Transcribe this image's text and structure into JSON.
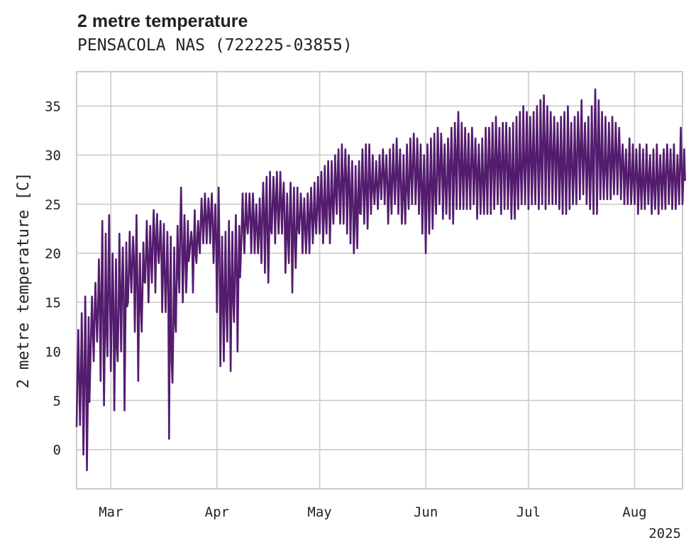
{
  "chart_data": {
    "type": "line",
    "title": "2 metre temperature",
    "subtitle": "PENSACOLA NAS (722225-03855)",
    "ylabel": "2 metre temperature [C]",
    "year_label": "2025",
    "x_range": [
      "2025-02-19",
      "2025-08-15"
    ],
    "ylim": [
      -4,
      38.5
    ],
    "y_ticks": [
      0,
      5,
      10,
      15,
      20,
      25,
      30,
      35
    ],
    "x_ticks": [
      {
        "date": "2025-03-01",
        "label": "Mar"
      },
      {
        "date": "2025-04-01",
        "label": "Apr"
      },
      {
        "date": "2025-05-01",
        "label": "May"
      },
      {
        "date": "2025-06-01",
        "label": "Jun"
      },
      {
        "date": "2025-07-01",
        "label": "Jul"
      },
      {
        "date": "2025-08-01",
        "label": "Aug"
      }
    ],
    "grid": true,
    "line_color": "#541C6E",
    "series": [
      {
        "x": [
          "2025-02-19",
          "2025-02-20",
          "2025-02-21",
          "2025-02-22",
          "2025-02-23",
          "2025-02-24",
          "2025-02-25",
          "2025-02-26",
          "2025-02-27",
          "2025-02-28",
          "2025-03-01",
          "2025-03-02",
          "2025-03-03",
          "2025-03-04",
          "2025-03-05",
          "2025-03-06",
          "2025-03-07",
          "2025-03-08",
          "2025-03-09",
          "2025-03-10",
          "2025-03-11",
          "2025-03-12",
          "2025-03-13",
          "2025-03-14",
          "2025-03-15",
          "2025-03-16",
          "2025-03-17",
          "2025-03-18",
          "2025-03-19",
          "2025-03-20",
          "2025-03-21",
          "2025-03-22",
          "2025-03-23",
          "2025-03-24",
          "2025-03-25",
          "2025-03-26",
          "2025-03-27",
          "2025-03-28",
          "2025-03-29",
          "2025-03-30",
          "2025-03-31",
          "2025-04-01",
          "2025-04-02",
          "2025-04-03",
          "2025-04-04",
          "2025-04-05",
          "2025-04-06",
          "2025-04-07",
          "2025-04-08",
          "2025-04-09",
          "2025-04-10",
          "2025-04-11",
          "2025-04-12",
          "2025-04-13",
          "2025-04-14",
          "2025-04-15",
          "2025-04-16",
          "2025-04-17",
          "2025-04-18",
          "2025-04-19",
          "2025-04-20",
          "2025-04-21",
          "2025-04-22",
          "2025-04-23",
          "2025-04-24",
          "2025-04-25",
          "2025-04-26",
          "2025-04-27",
          "2025-04-28",
          "2025-04-29",
          "2025-04-30",
          "2025-05-01",
          "2025-05-02",
          "2025-05-03",
          "2025-05-04",
          "2025-05-05",
          "2025-05-06",
          "2025-05-07",
          "2025-05-08",
          "2025-05-09",
          "2025-05-10",
          "2025-05-11",
          "2025-05-12",
          "2025-05-13",
          "2025-05-14",
          "2025-05-15",
          "2025-05-16",
          "2025-05-17",
          "2025-05-18",
          "2025-05-19",
          "2025-05-20",
          "2025-05-21",
          "2025-05-22",
          "2025-05-23",
          "2025-05-24",
          "2025-05-25",
          "2025-05-26",
          "2025-05-27",
          "2025-05-28",
          "2025-05-29",
          "2025-05-30",
          "2025-05-31",
          "2025-06-01",
          "2025-06-02",
          "2025-06-03",
          "2025-06-04",
          "2025-06-05",
          "2025-06-06",
          "2025-06-07",
          "2025-06-08",
          "2025-06-09",
          "2025-06-10",
          "2025-06-11",
          "2025-06-12",
          "2025-06-13",
          "2025-06-14",
          "2025-06-15",
          "2025-06-16",
          "2025-06-17",
          "2025-06-18",
          "2025-06-19",
          "2025-06-20",
          "2025-06-21",
          "2025-06-22",
          "2025-06-23",
          "2025-06-24",
          "2025-06-25",
          "2025-06-26",
          "2025-06-27",
          "2025-06-28",
          "2025-06-29",
          "2025-06-30",
          "2025-07-01",
          "2025-07-02",
          "2025-07-03",
          "2025-07-04",
          "2025-07-05",
          "2025-07-06",
          "2025-07-07",
          "2025-07-08",
          "2025-07-09",
          "2025-07-10",
          "2025-07-11",
          "2025-07-12",
          "2025-07-13",
          "2025-07-14",
          "2025-07-15",
          "2025-07-16",
          "2025-07-17",
          "2025-07-18",
          "2025-07-19",
          "2025-07-20",
          "2025-07-21",
          "2025-07-22",
          "2025-07-23",
          "2025-07-24",
          "2025-07-25",
          "2025-07-26",
          "2025-07-27",
          "2025-07-28",
          "2025-07-29",
          "2025-07-30",
          "2025-07-31",
          "2025-08-01",
          "2025-08-02",
          "2025-08-03",
          "2025-08-04",
          "2025-08-05",
          "2025-08-06",
          "2025-08-07",
          "2025-08-08",
          "2025-08-09",
          "2025-08-10",
          "2025-08-11",
          "2025-08-12",
          "2025-08-13",
          "2025-08-14",
          "2025-08-15"
        ],
        "min": [
          2.3,
          2.5,
          -0.5,
          -2.1,
          8.5,
          9.0,
          11.0,
          7.0,
          4.5,
          9.5,
          8.0,
          4.0,
          9.0,
          10.0,
          4.0,
          15.0,
          16.0,
          12.0,
          7.0,
          12.0,
          17.0,
          15.0,
          17.0,
          16.0,
          19.0,
          14.0,
          14.0,
          1.1,
          6.8,
          12.0,
          16.0,
          15.0,
          16.0,
          20.0,
          16.0,
          19.0,
          20.0,
          21.0,
          21.0,
          21.0,
          19.0,
          14.0,
          8.5,
          9.0,
          11.0,
          8.0,
          13.0,
          10.0,
          20.0,
          20.0,
          22.0,
          20.0,
          20.0,
          20.0,
          19.0,
          18.0,
          17.0,
          22.0,
          21.0,
          22.0,
          22.0,
          18.0,
          19.0,
          16.0,
          18.5,
          22.0,
          20.0,
          20.0,
          20.0,
          21.0,
          22.0,
          22.0,
          21.0,
          22.0,
          21.0,
          23.0,
          24.0,
          23.0,
          23.0,
          22.0,
          21.0,
          20.0,
          20.5,
          24.0,
          23.0,
          22.5,
          24.0,
          25.0,
          24.5,
          25.5,
          25.0,
          23.0,
          24.0,
          25.0,
          24.0,
          23.0,
          23.0,
          24.5,
          25.0,
          25.0,
          24.0,
          22.0,
          20.0,
          22.0,
          22.5,
          24.0,
          25.0,
          23.5,
          24.0,
          23.5,
          23.0,
          24.5,
          24.5,
          24.5,
          24.5,
          24.5,
          25.0,
          23.5,
          24.0,
          24.0,
          24.0,
          24.0,
          24.5,
          25.0,
          24.0,
          24.5,
          24.5,
          23.5,
          23.5,
          24.5,
          25.0,
          25.0,
          24.5,
          25.0,
          25.0,
          24.5,
          25.0,
          24.5,
          25.0,
          25.0,
          25.0,
          24.5,
          24.0,
          24.0,
          24.5,
          25.0,
          25.0,
          25.5,
          26.0,
          25.0,
          24.5,
          24.0,
          24.0,
          25.5,
          25.5,
          25.5,
          25.5,
          26.0,
          26.0,
          25.5,
          25.0,
          25.0,
          25.0,
          25.0,
          24.0,
          24.5,
          24.5,
          25.0,
          24.0,
          24.5,
          24.0,
          24.5,
          24.5,
          25.0,
          24.5,
          24.5,
          25.0,
          25.0
        ],
        "max": [
          12.2,
          13.9,
          15.6,
          13.5,
          15.6,
          17.0,
          19.4,
          23.3,
          22.0,
          23.9,
          20.0,
          19.4,
          22.0,
          20.6,
          21.1,
          22.2,
          21.7,
          23.9,
          20.0,
          21.1,
          23.3,
          22.8,
          24.4,
          24.0,
          23.3,
          23.0,
          22.2,
          21.7,
          20.6,
          22.8,
          26.7,
          23.9,
          23.3,
          22.2,
          24.4,
          23.3,
          25.6,
          26.1,
          25.6,
          26.1,
          25.0,
          26.7,
          21.7,
          22.2,
          23.3,
          22.2,
          23.9,
          22.8,
          26.1,
          26.1,
          26.1,
          26.1,
          25.0,
          25.6,
          27.2,
          27.8,
          28.3,
          27.8,
          28.3,
          28.3,
          27.2,
          26.1,
          27.2,
          26.7,
          26.7,
          26.1,
          25.6,
          26.1,
          26.7,
          27.2,
          27.8,
          28.3,
          28.9,
          29.4,
          29.4,
          30.0,
          30.6,
          31.1,
          30.6,
          30.0,
          29.4,
          28.9,
          29.4,
          30.6,
          31.1,
          31.1,
          30.0,
          29.4,
          30.0,
          30.6,
          30.0,
          30.6,
          31.1,
          31.7,
          30.6,
          30.0,
          31.1,
          31.7,
          32.2,
          31.7,
          31.1,
          30.0,
          31.1,
          31.7,
          32.2,
          32.8,
          32.2,
          31.1,
          31.7,
          32.8,
          33.3,
          34.4,
          33.3,
          32.8,
          32.2,
          32.8,
          31.7,
          31.1,
          31.7,
          32.8,
          32.8,
          33.3,
          33.9,
          32.8,
          33.3,
          33.3,
          32.8,
          33.3,
          33.9,
          34.4,
          35.0,
          34.4,
          33.9,
          34.4,
          35.0,
          35.6,
          36.1,
          35.0,
          34.4,
          33.9,
          33.3,
          33.9,
          34.4,
          35.0,
          33.3,
          33.9,
          34.4,
          35.6,
          33.3,
          33.9,
          35.0,
          36.7,
          35.6,
          34.4,
          33.9,
          33.3,
          33.9,
          33.3,
          32.8,
          31.1,
          30.6,
          31.7,
          31.1,
          30.6,
          31.1,
          30.6,
          31.1,
          30.0,
          30.6,
          31.1,
          30.0,
          30.6,
          31.1,
          30.6,
          31.1,
          30.0,
          32.8,
          30.6
        ]
      }
    ]
  }
}
